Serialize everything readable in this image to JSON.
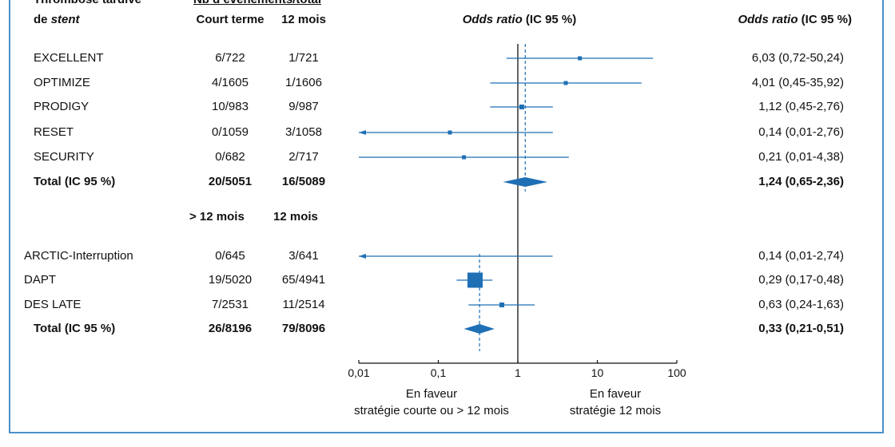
{
  "header": {
    "col1_line1": "Thrombose tardive",
    "col1_line2_prefix": "de ",
    "col1_line2_italic": "stent",
    "events_title": "Nb d’événements/total",
    "col_short": "Court terme",
    "col_12m": "12 mois",
    "plot_title_italic": "Odds ratio",
    "plot_title_rest": " (IC 95 %)",
    "right_title_italic": "Odds ratio",
    "right_title_rest": " (IC 95 %)"
  },
  "subheader2": {
    "col_a": "> 12 mois",
    "col_b": "12 mois"
  },
  "rows": [
    {
      "study": "EXCELLENT",
      "a": "6/722",
      "b": "1/721",
      "ci_text": "6,03 (0,72-50,24)",
      "or": 6.03,
      "lo": 0.72,
      "hi": 50.24,
      "weight": 1,
      "bold": false
    },
    {
      "study": "OPTIMIZE",
      "a": "4/1605",
      "b": "1/1606",
      "ci_text": "4,01 (0,45-35,92)",
      "or": 4.01,
      "lo": 0.45,
      "hi": 35.92,
      "weight": 1,
      "bold": false
    },
    {
      "study": "PRODIGY",
      "a": "10/983",
      "b": "9/987",
      "ci_text": "1,12 (0,45-2,76)",
      "or": 1.12,
      "lo": 0.45,
      "hi": 2.76,
      "weight": 1.5,
      "bold": false
    },
    {
      "study": "RESET",
      "a": "0/1059",
      "b": "3/1058",
      "ci_text": "0,14 (0,01-2,76)",
      "or": 0.14,
      "lo": 0.01,
      "hi": 2.76,
      "weight": 1,
      "bold": false,
      "arrow_left": true
    },
    {
      "study": "SECURITY",
      "a": "0/682",
      "b": "2/717",
      "ci_text": "0,21 (0,01-4,38)",
      "or": 0.21,
      "lo": 0.01,
      "hi": 4.38,
      "weight": 1,
      "bold": false
    },
    {
      "study": "Total (IC 95 %)",
      "a": "20/5051",
      "b": "16/5089",
      "ci_text": "1,24 (0,65-2,36)",
      "or": 1.24,
      "lo": 0.65,
      "hi": 2.36,
      "bold": true,
      "diamond": true
    },
    {
      "study": "ARCTIC-Interruption",
      "a": "0/645",
      "b": "3/641",
      "ci_text": "0,14 (0,01-2,74)",
      "or": 0.14,
      "lo": 0.01,
      "hi": 2.74,
      "weight": 0,
      "bold": false,
      "arrow_left": true
    },
    {
      "study": "DAPT",
      "a": "19/5020",
      "b": "65/4941",
      "ci_text": "0,29 (0,17-0,48)",
      "or": 0.29,
      "lo": 0.17,
      "hi": 0.48,
      "weight": 8,
      "bold": false
    },
    {
      "study": "DES LATE",
      "a": "7/2531",
      "b": "11/2514",
      "ci_text": "0,63 (0,24-1,63)",
      "or": 0.63,
      "lo": 0.24,
      "hi": 1.63,
      "weight": 1.5,
      "bold": false
    },
    {
      "study": "Total (IC 95 %)",
      "a": "26/8196",
      "b": "79/8096",
      "ci_text": "0,33 (0,21-0,51)",
      "or": 0.33,
      "lo": 0.21,
      "hi": 0.51,
      "bold": true,
      "diamond": true
    }
  ],
  "axis": {
    "ticks": [
      0.01,
      0.1,
      1,
      10,
      100
    ],
    "tick_labels": [
      "0,01",
      "0,1",
      "1",
      "10",
      "100"
    ],
    "left_label_1": "En faveur",
    "left_label_2": "stratégie courte ou > 12 mois",
    "right_label_1": "En faveur",
    "right_label_2": "stratégie  12 mois"
  },
  "colors": {
    "accent": "#1f6fb5",
    "frame": "#4a90c8"
  },
  "chart_data": {
    "type": "forest",
    "scale": "log",
    "xlim": [
      0.01,
      100
    ],
    "groups": [
      {
        "studies": [
          "EXCELLENT",
          "OPTIMIZE",
          "PRODIGY",
          "RESET",
          "SECURITY"
        ],
        "or": [
          6.03,
          4.01,
          1.12,
          0.14,
          0.21
        ],
        "ci_low": [
          0.72,
          0.45,
          0.45,
          0.01,
          0.01
        ],
        "ci_high": [
          50.24,
          35.92,
          2.76,
          2.76,
          4.38
        ],
        "total": {
          "or": 1.24,
          "ci_low": 0.65,
          "ci_high": 2.36
        }
      },
      {
        "studies": [
          "ARCTIC-Interruption",
          "DAPT",
          "DES LATE"
        ],
        "or": [
          0.14,
          0.29,
          0.63
        ],
        "ci_low": [
          0.01,
          0.17,
          0.24
        ],
        "ci_high": [
          2.74,
          0.48,
          1.63
        ],
        "total": {
          "or": 0.33,
          "ci_low": 0.21,
          "ci_high": 0.51
        }
      }
    ]
  }
}
